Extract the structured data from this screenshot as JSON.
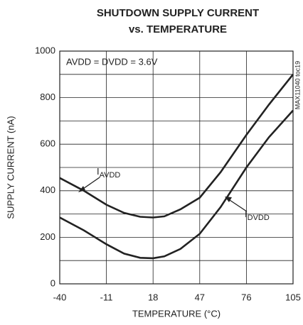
{
  "chart_data": {
    "type": "line",
    "title": [
      "SHUTDOWN SUPPLY CURRENT",
      "vs. TEMPERATURE"
    ],
    "x_label": "TEMPERATURE (°C)",
    "y_label": "SUPPLY CURRENT (nA)",
    "condition": "AVDD = DVDD = 3.6V",
    "watermark": "MAX11040 toc19",
    "x": [
      -40,
      -25,
      -11,
      0,
      10,
      18,
      25,
      35,
      47,
      60,
      76,
      90,
      105
    ],
    "series": [
      {
        "name": {
          "main": "I",
          "sub": "AVDD"
        },
        "color": "#222222",
        "values": [
          455,
          400,
          340,
          305,
          288,
          285,
          290,
          320,
          370,
          480,
          640,
          770,
          900
        ]
      },
      {
        "name": {
          "main": "I",
          "sub": "DVDD"
        },
        "color": "#222222",
        "values": [
          285,
          230,
          170,
          130,
          112,
          110,
          118,
          150,
          215,
          330,
          500,
          630,
          745
        ]
      }
    ],
    "xlim": [
      -40,
      105
    ],
    "xticks": [
      -40,
      -11,
      18,
      47,
      76,
      105
    ],
    "ylim": [
      0,
      1000
    ],
    "yticks": [
      0,
      200,
      400,
      600,
      800,
      1000
    ],
    "y_minor_grid": [
      100,
      300,
      500,
      700,
      900
    ],
    "grid": true
  }
}
